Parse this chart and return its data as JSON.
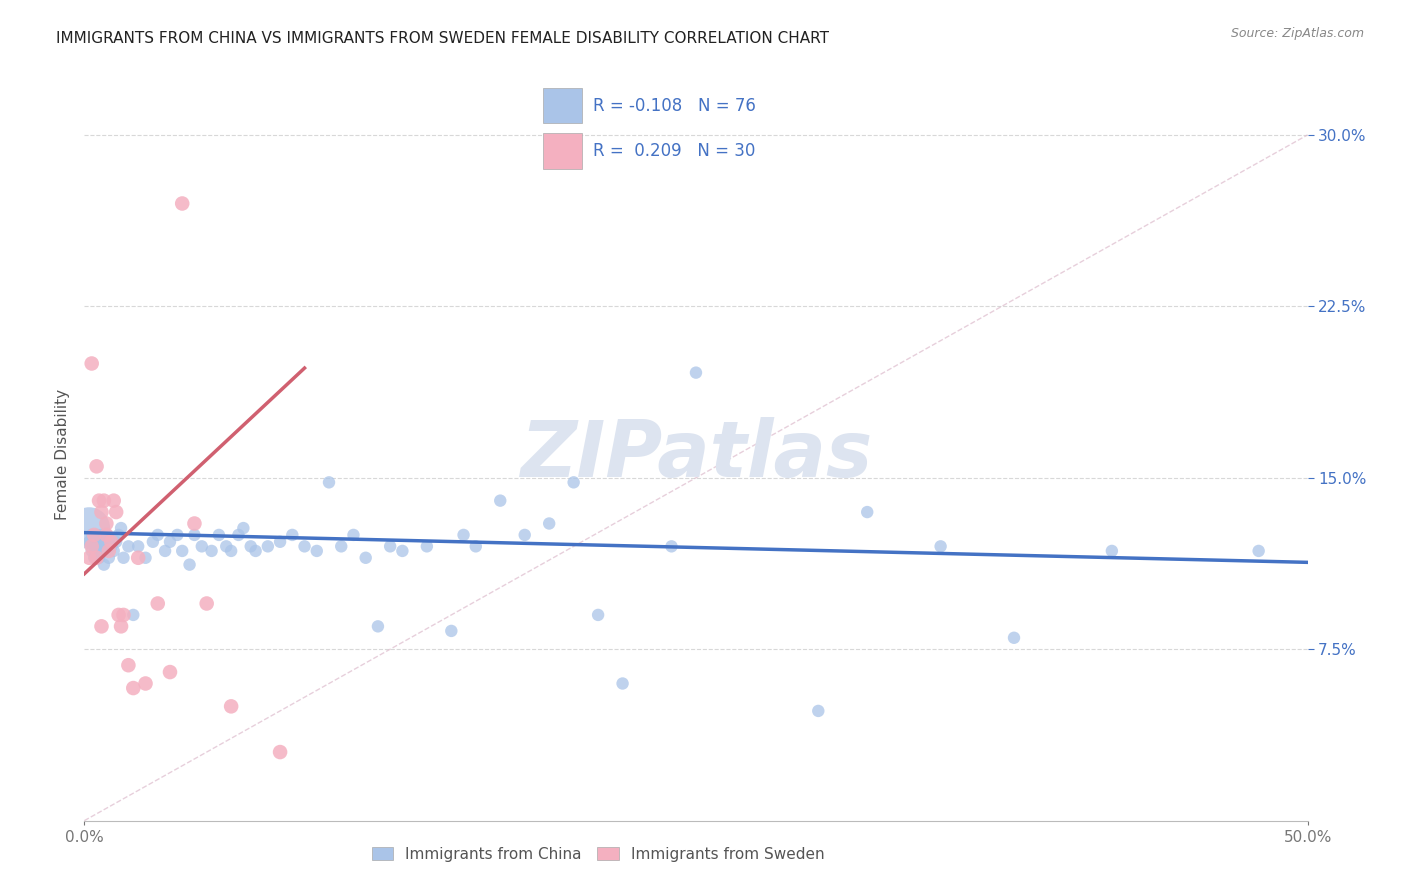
{
  "title": "IMMIGRANTS FROM CHINA VS IMMIGRANTS FROM SWEDEN FEMALE DISABILITY CORRELATION CHART",
  "source_text": "Source: ZipAtlas.com",
  "ylabel": "Female Disability",
  "xlim": [
    0.0,
    0.5
  ],
  "ylim": [
    0.0,
    0.32
  ],
  "ytick_vals": [
    0.075,
    0.15,
    0.225,
    0.3
  ],
  "xtick_vals": [
    0.0,
    0.5
  ],
  "legend_R_china": "-0.108",
  "legend_N_china": "76",
  "legend_R_sweden": "0.209",
  "legend_N_sweden": "30",
  "china_color": "#aac4e8",
  "sweden_color": "#f4b0c0",
  "china_line_color": "#4472c4",
  "sweden_line_color": "#d06070",
  "watermark_text": "ZIPatlas",
  "background_color": "#ffffff",
  "grid_color": "#d8d8d8",
  "axis_label_color": "#4472c4",
  "title_color": "#222222",
  "source_color": "#888888",
  "ref_line_color": "#cccccc",
  "china_scatter_x": [
    0.002,
    0.002,
    0.003,
    0.003,
    0.004,
    0.004,
    0.005,
    0.005,
    0.006,
    0.006,
    0.007,
    0.007,
    0.007,
    0.008,
    0.008,
    0.009,
    0.009,
    0.01,
    0.01,
    0.011,
    0.012,
    0.013,
    0.014,
    0.015,
    0.016,
    0.018,
    0.02,
    0.022,
    0.025,
    0.028,
    0.03,
    0.033,
    0.035,
    0.038,
    0.04,
    0.043,
    0.045,
    0.048,
    0.052,
    0.055,
    0.058,
    0.06,
    0.063,
    0.065,
    0.068,
    0.07,
    0.075,
    0.08,
    0.085,
    0.09,
    0.095,
    0.1,
    0.105,
    0.11,
    0.115,
    0.12,
    0.125,
    0.13,
    0.14,
    0.15,
    0.155,
    0.16,
    0.17,
    0.18,
    0.19,
    0.2,
    0.21,
    0.22,
    0.24,
    0.25,
    0.3,
    0.32,
    0.35,
    0.38,
    0.42,
    0.48
  ],
  "china_scatter_y": [
    0.128,
    0.122,
    0.118,
    0.125,
    0.12,
    0.115,
    0.125,
    0.118,
    0.12,
    0.115,
    0.122,
    0.118,
    0.125,
    0.112,
    0.12,
    0.118,
    0.125,
    0.115,
    0.122,
    0.12,
    0.118,
    0.122,
    0.125,
    0.128,
    0.115,
    0.12,
    0.09,
    0.12,
    0.115,
    0.122,
    0.125,
    0.118,
    0.122,
    0.125,
    0.118,
    0.112,
    0.125,
    0.12,
    0.118,
    0.125,
    0.12,
    0.118,
    0.125,
    0.128,
    0.12,
    0.118,
    0.12,
    0.122,
    0.125,
    0.12,
    0.118,
    0.148,
    0.12,
    0.125,
    0.115,
    0.085,
    0.12,
    0.118,
    0.12,
    0.083,
    0.125,
    0.12,
    0.14,
    0.125,
    0.13,
    0.148,
    0.09,
    0.06,
    0.12,
    0.196,
    0.048,
    0.135,
    0.12,
    0.08,
    0.118,
    0.118
  ],
  "china_scatter_size": [
    900,
    80,
    80,
    80,
    80,
    80,
    80,
    80,
    80,
    80,
    80,
    80,
    80,
    80,
    80,
    80,
    80,
    80,
    80,
    80,
    80,
    80,
    80,
    80,
    80,
    80,
    80,
    80,
    80,
    80,
    80,
    80,
    80,
    80,
    80,
    80,
    80,
    80,
    80,
    80,
    80,
    80,
    80,
    80,
    80,
    80,
    80,
    80,
    80,
    80,
    80,
    80,
    80,
    80,
    80,
    80,
    80,
    80,
    80,
    80,
    80,
    80,
    80,
    80,
    80,
    80,
    80,
    80,
    80,
    80,
    80,
    80,
    80,
    80,
    80,
    80
  ],
  "sweden_scatter_x": [
    0.002,
    0.003,
    0.003,
    0.004,
    0.005,
    0.005,
    0.006,
    0.007,
    0.007,
    0.008,
    0.009,
    0.009,
    0.01,
    0.011,
    0.012,
    0.013,
    0.014,
    0.015,
    0.016,
    0.018,
    0.02,
    0.022,
    0.025,
    0.03,
    0.035,
    0.04,
    0.045,
    0.05,
    0.06,
    0.08
  ],
  "sweden_scatter_y": [
    0.115,
    0.12,
    0.2,
    0.125,
    0.155,
    0.115,
    0.14,
    0.135,
    0.085,
    0.14,
    0.13,
    0.125,
    0.118,
    0.122,
    0.14,
    0.135,
    0.09,
    0.085,
    0.09,
    0.068,
    0.058,
    0.115,
    0.06,
    0.095,
    0.065,
    0.27,
    0.13,
    0.095,
    0.05,
    0.03
  ],
  "china_line_x": [
    0.0,
    0.5
  ],
  "china_line_y": [
    0.126,
    0.113
  ],
  "sweden_line_x": [
    0.0,
    0.09
  ],
  "sweden_line_y": [
    0.108,
    0.198
  ],
  "ref_line_x": [
    0.0,
    0.5
  ],
  "ref_line_y": [
    0.0,
    0.3
  ]
}
